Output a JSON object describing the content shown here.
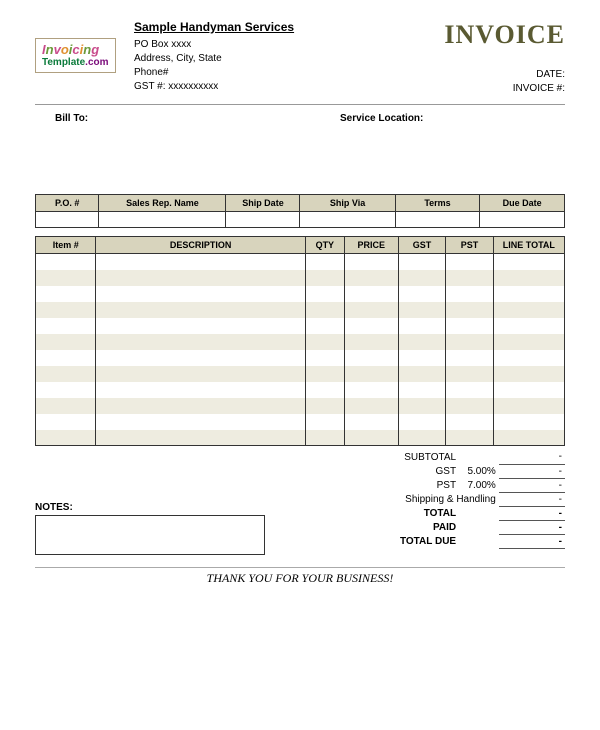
{
  "logo": {
    "word1": "Invoicing",
    "word2_a": "Template",
    "word2_b": ".com"
  },
  "from": {
    "company": "Sample Handyman Services",
    "line1": "PO Box xxxx",
    "line2": "Address, City, State",
    "line3": "Phone#",
    "line4": "GST #: xxxxxxxxxx"
  },
  "doc_title": "INVOICE",
  "meta": {
    "date_label": "DATE:",
    "invoice_no_label": "INVOICE #:"
  },
  "bill_to_label": "Bill To:",
  "service_loc_label": "Service Location:",
  "order_table": {
    "headers": [
      "P.O. #",
      "Sales Rep. Name",
      "Ship Date",
      "Ship Via",
      "Terms",
      "Due Date"
    ],
    "col_widths_pct": [
      12,
      24,
      14,
      18,
      16,
      16
    ]
  },
  "items_table": {
    "headers": [
      "Item #",
      "DESCRIPTION",
      "QTY",
      "PRICE",
      "GST",
      "PST",
      "LINE TOTAL"
    ],
    "row_count": 12,
    "stripe_color": "#eeece0",
    "header_bg": "#d8d4bd"
  },
  "totals": {
    "rows": [
      {
        "label": "SUBTOTAL",
        "rate": "",
        "value": "-",
        "bold": false
      },
      {
        "label": "GST",
        "rate": "5.00%",
        "value": "-",
        "bold": false
      },
      {
        "label": "PST",
        "rate": "7.00%",
        "value": "-",
        "bold": false
      },
      {
        "label": "Shipping & Handling",
        "rate": "",
        "value": "-",
        "bold": false,
        "span": true
      },
      {
        "label": "TOTAL",
        "rate": "",
        "value": "-",
        "bold": true
      },
      {
        "label": "PAID",
        "rate": "",
        "value": "-",
        "bold": true
      },
      {
        "label": "TOTAL DUE",
        "rate": "",
        "value": "-",
        "bold": true
      }
    ]
  },
  "notes_label": "NOTES:",
  "thank_you": "THANK YOU FOR YOUR BUSINESS!",
  "colors": {
    "header_bg": "#d8d4bd",
    "stripe": "#eeece0",
    "title": "#5a5a32",
    "border": "#333333"
  }
}
